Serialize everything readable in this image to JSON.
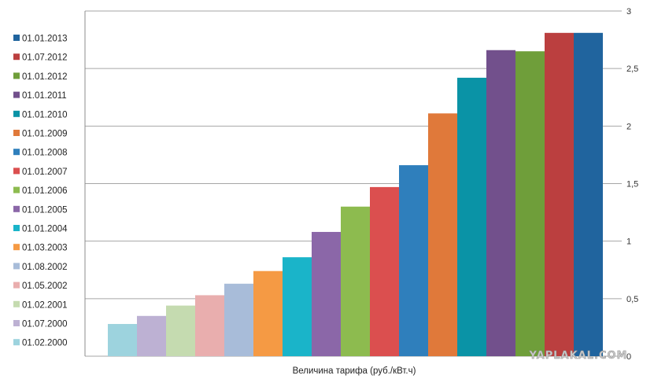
{
  "chart_data": {
    "type": "bar",
    "categories": [
      "01.02.2000",
      "01.07.2000",
      "01.02.2001",
      "01.05.2002",
      "01.08.2002",
      "01.03.2003",
      "01.01.2004",
      "01.01.2005",
      "01.01.2006",
      "01.01.2007",
      "01.01.2008",
      "01.01.2009",
      "01.01.2010",
      "01.01.2011",
      "01.01.2012",
      "01.07.2012",
      "01.01.2013"
    ],
    "values": [
      0.28,
      0.35,
      0.44,
      0.53,
      0.63,
      0.74,
      0.86,
      1.08,
      1.3,
      1.47,
      1.66,
      2.11,
      2.42,
      2.66,
      2.65,
      2.81,
      2.81
    ],
    "colors": [
      "#9dd3de",
      "#bdb1d3",
      "#c5dbb0",
      "#e9aeae",
      "#a8bcd9",
      "#f59a44",
      "#1ab4c9",
      "#8b67a8",
      "#8dbb4f",
      "#db4f4f",
      "#2f7fbc",
      "#e0793a",
      "#0a93a6",
      "#72508c",
      "#6f9e3a",
      "#bb3f3f",
      "#20649e"
    ],
    "xlabel": "Величина тарифа (руб./кВт.ч)",
    "ylabel": "",
    "ylim": [
      0,
      3
    ],
    "yticks": [
      "0",
      "0,5",
      "1",
      "1,5",
      "2",
      "2,5",
      "3"
    ],
    "legend_position": "left",
    "legend_order": "reverse",
    "grid": true
  },
  "watermark": "YAPLAKAL.COM"
}
